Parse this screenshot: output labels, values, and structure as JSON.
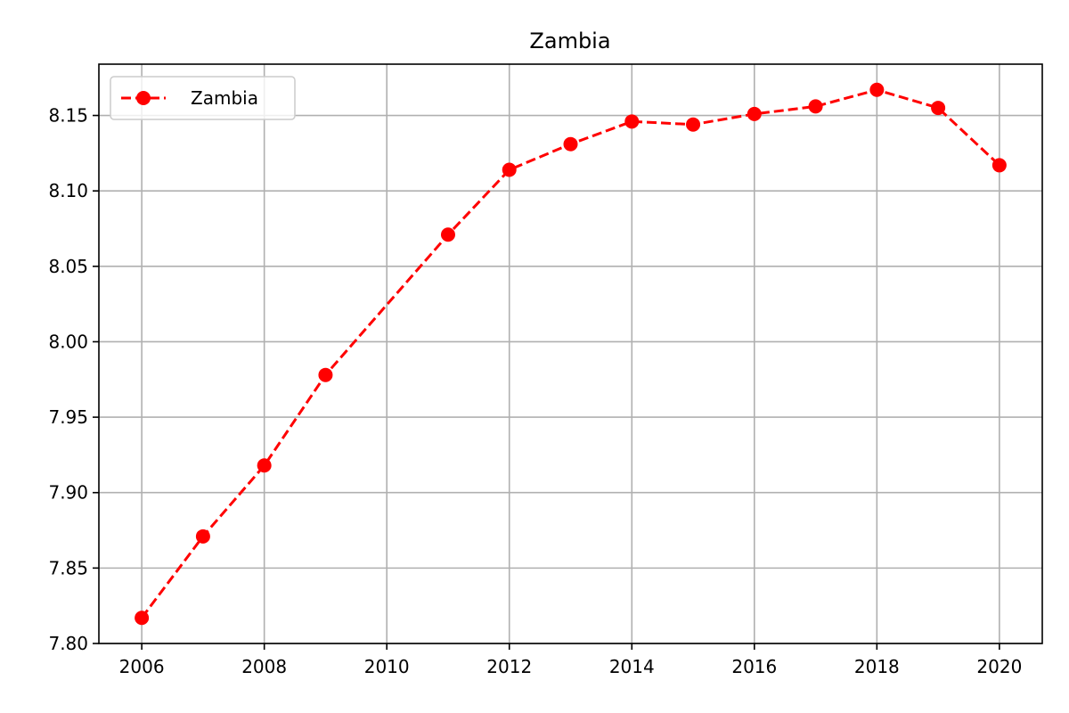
{
  "chart_data": {
    "type": "line",
    "title": "Zambia",
    "xlabel": "",
    "ylabel": "",
    "xlim": [
      2005.3,
      2020.7
    ],
    "ylim": [
      7.8,
      8.184
    ],
    "xticks": [
      2006,
      2008,
      2010,
      2012,
      2014,
      2016,
      2018,
      2020
    ],
    "xtick_labels": [
      "2006",
      "2008",
      "2010",
      "2012",
      "2014",
      "2016",
      "2018",
      "2020"
    ],
    "yticks": [
      7.8,
      7.85,
      7.9,
      7.95,
      8.0,
      8.05,
      8.1,
      8.15
    ],
    "ytick_labels": [
      "7.80",
      "7.85",
      "7.90",
      "7.95",
      "8.00",
      "8.05",
      "8.10",
      "8.15"
    ],
    "grid": true,
    "legend_position": "top-left",
    "x": [
      2006,
      2007,
      2008,
      2009,
      2011,
      2012,
      2013,
      2014,
      2015,
      2016,
      2017,
      2018,
      2019,
      2020
    ],
    "series": [
      {
        "name": "Zambia",
        "color": "#ff0000",
        "line_style": "dashed",
        "marker": "circle",
        "values": [
          7.817,
          7.871,
          7.918,
          7.978,
          8.071,
          8.114,
          8.131,
          8.146,
          8.144,
          8.151,
          8.156,
          8.167,
          8.155,
          8.117
        ]
      }
    ]
  }
}
